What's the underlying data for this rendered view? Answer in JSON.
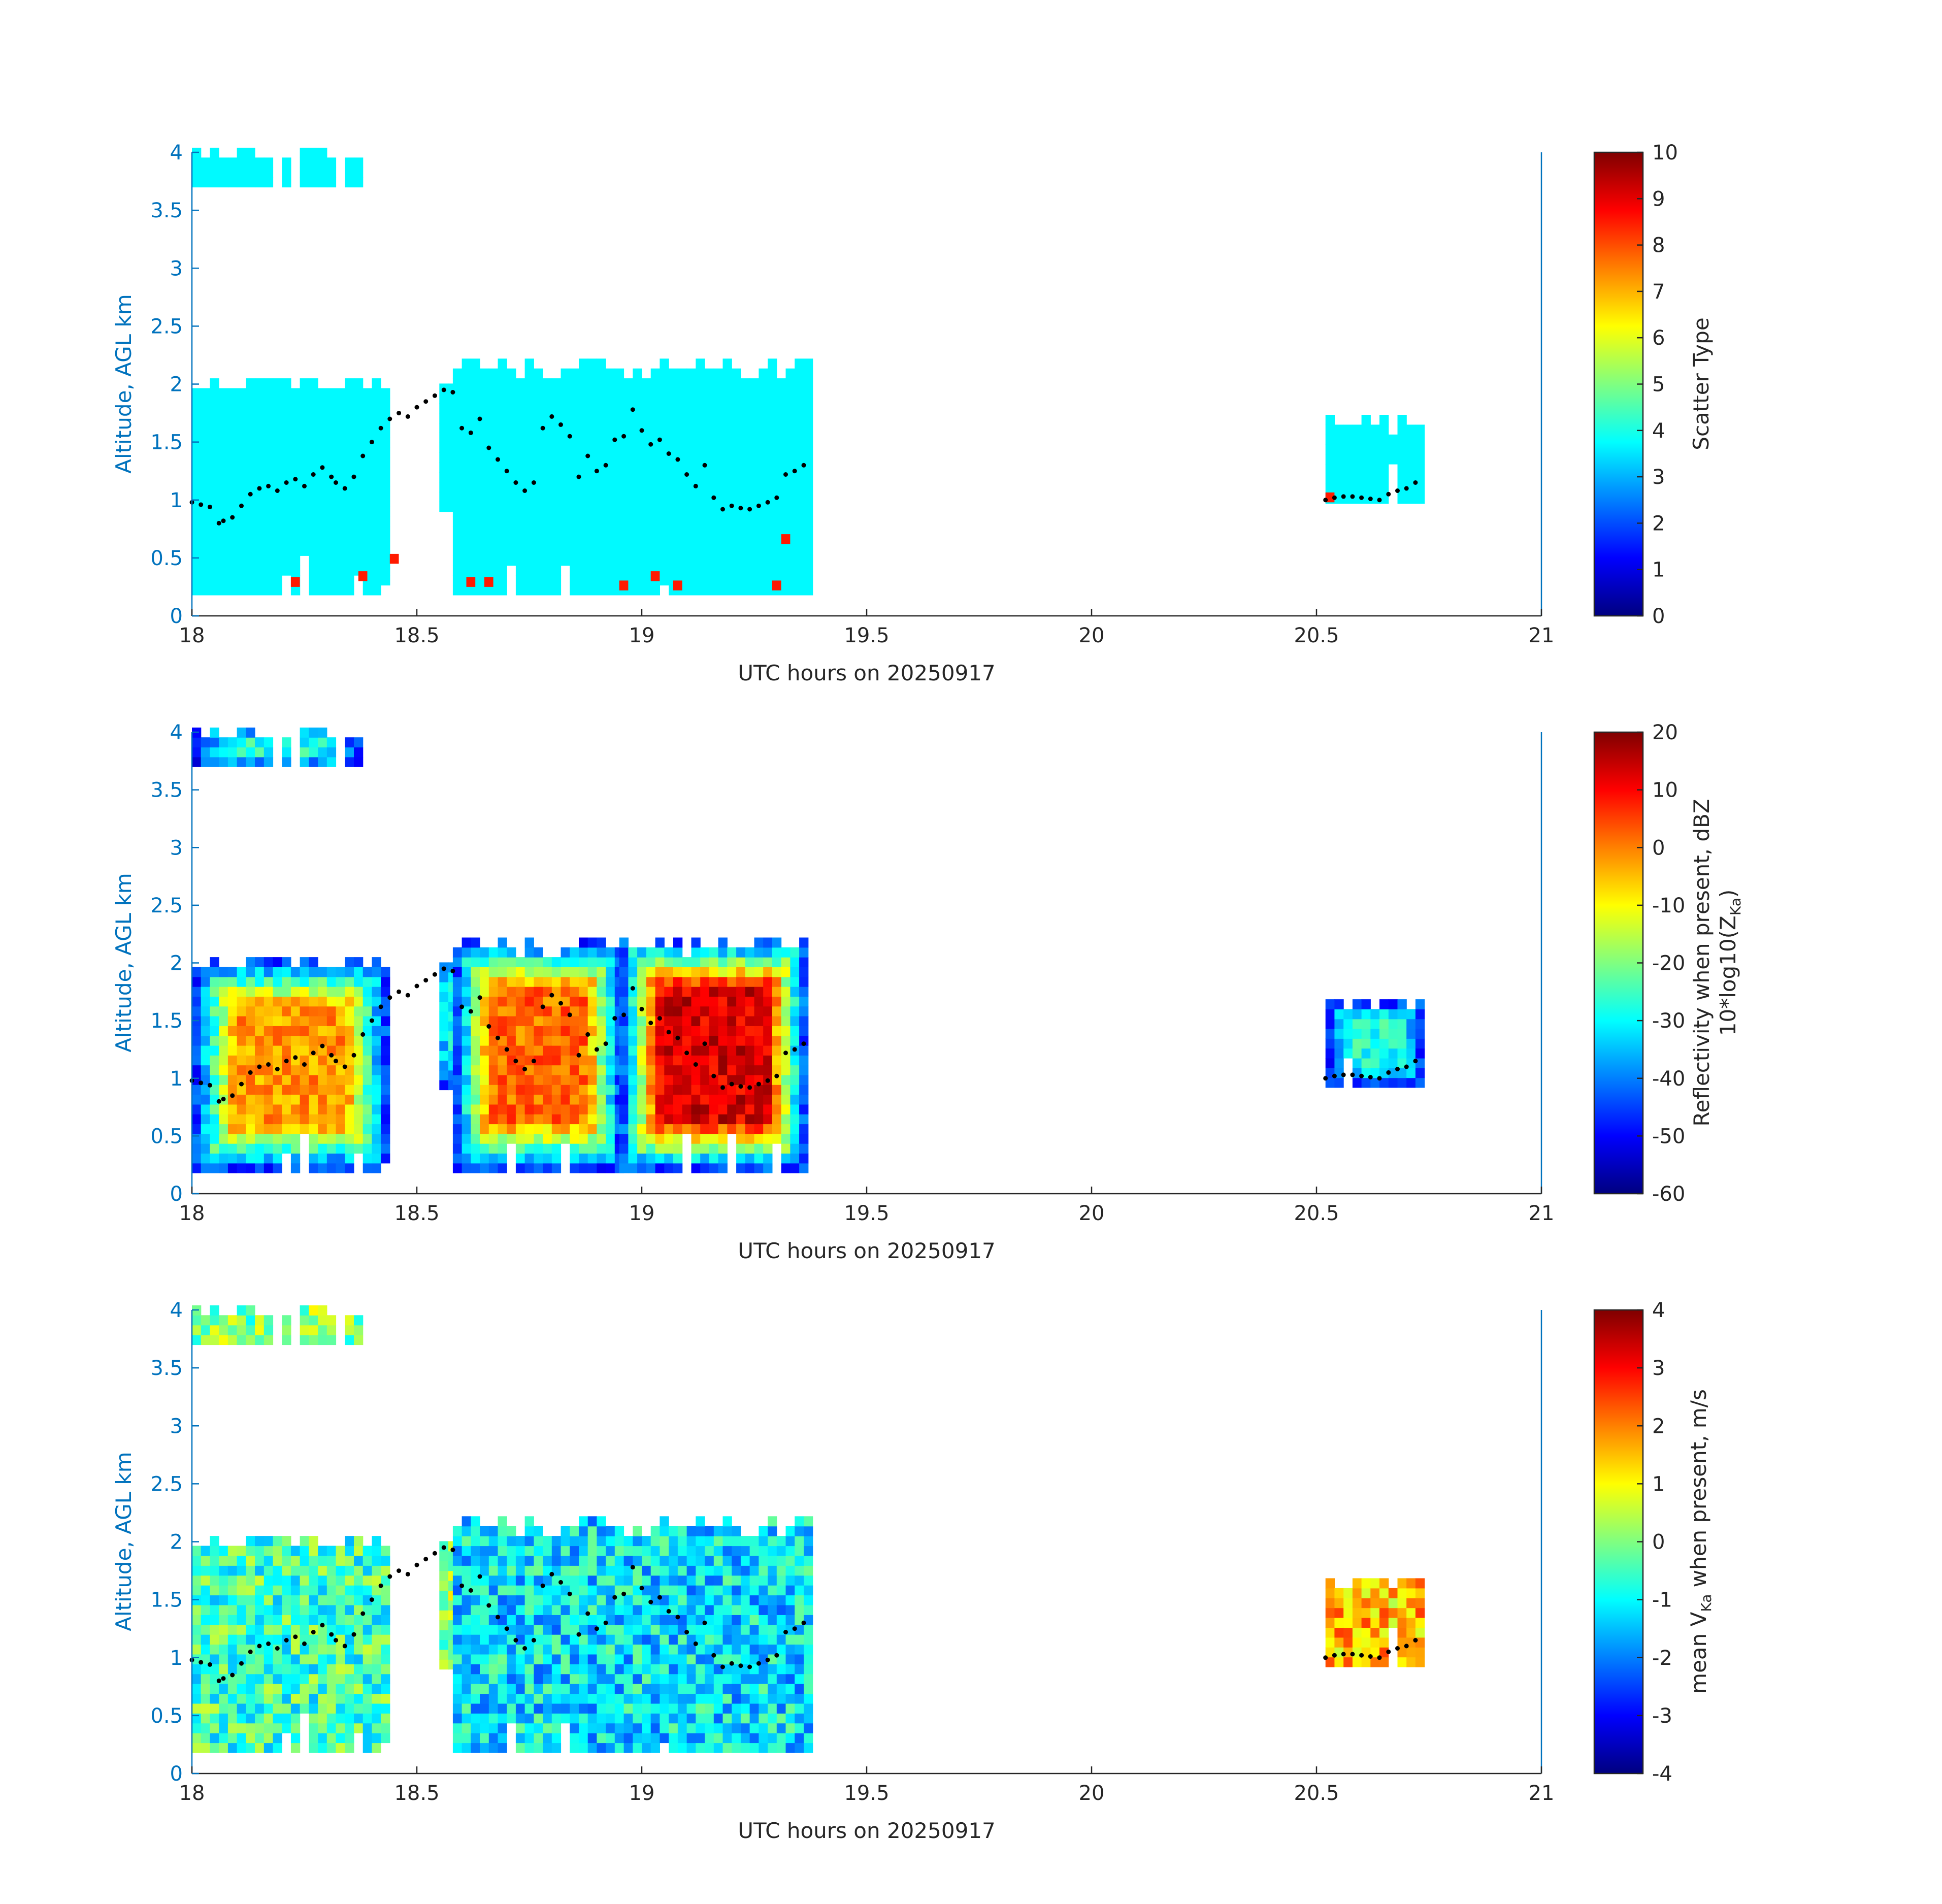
{
  "figure": {
    "panels": [
      {
        "id": "scatter_type",
        "xlabel": "UTC hours on 20250917",
        "ylabel": "Altitude, AGL km",
        "colorbar": {
          "label": "Scatter Type",
          "ticks": [
            "0",
            "1",
            "2",
            "3",
            "4",
            "5",
            "6",
            "7",
            "8",
            "9",
            "10"
          ]
        }
      },
      {
        "id": "reflectivity",
        "xlabel": "UTC hours on 20250917",
        "ylabel": "Altitude, AGL km",
        "colorbar": {
          "label": "Reflectivity when present, dBZ",
          "label2_pre": "10*log10(Z",
          "label2_sub": "Ka",
          "label2_post": ")",
          "ticks": [
            "-60",
            "-50",
            "-40",
            "-30",
            "-20",
            "-10",
            "0",
            "10",
            "20"
          ]
        }
      },
      {
        "id": "velocity",
        "xlabel": "UTC hours on 20250917",
        "ylabel": "Altitude, AGL km",
        "colorbar": {
          "label_pre": "mean V",
          "label_sub": "Ka",
          "label_post": " when present, m/s",
          "ticks": [
            "-4",
            "-3",
            "-2",
            "-1",
            "0",
            "1",
            "2",
            "3",
            "4"
          ]
        }
      }
    ],
    "x_tick_labels": [
      "18",
      "18.5",
      "19",
      "19.5",
      "20",
      "20.5",
      "21"
    ],
    "y_tick_labels": [
      "0",
      "0.5",
      "1",
      "1.5",
      "2",
      "2.5",
      "3",
      "3.5",
      "4"
    ],
    "axis_color": "#0072BD",
    "tick_color": "#262626",
    "colormap": "jet"
  },
  "chart_data": [
    {
      "type": "heatmap",
      "title": "",
      "xlabel": "UTC hours on 20250917",
      "ylabel": "Altitude, AGL km",
      "xlim": [
        18,
        21
      ],
      "ylim": [
        0,
        4
      ],
      "colorbar_label": "Scatter Type",
      "clim": [
        0,
        10
      ],
      "grid": false,
      "echo_regions": [
        {
          "x_range": [
            18.0,
            18.37
          ],
          "y_range": [
            3.7,
            4.0
          ],
          "value": 3.7
        },
        {
          "x_range": [
            18.0,
            18.44
          ],
          "y_range": [
            0.18,
            2.05
          ],
          "value": 3.7
        },
        {
          "x_range": [
            18.55,
            18.6
          ],
          "y_range": [
            0.9,
            2.05
          ],
          "value": 3.7
        },
        {
          "x_range": [
            18.58,
            19.38
          ],
          "y_range": [
            0.18,
            2.2
          ],
          "value": 3.7
        },
        {
          "x_range": [
            20.52,
            20.73
          ],
          "y_range": [
            0.97,
            1.72
          ],
          "value": 3.7
        }
      ],
      "secondary_echoes": [
        {
          "x": 18.22,
          "y": 0.25,
          "value": 8.5
        },
        {
          "x": 18.37,
          "y": 0.3,
          "value": 8.5
        },
        {
          "x": 18.44,
          "y": 0.45,
          "value": 8.5
        },
        {
          "x": 18.61,
          "y": 0.25,
          "value": 8.5
        },
        {
          "x": 18.65,
          "y": 0.25,
          "value": 8.5
        },
        {
          "x": 18.95,
          "y": 0.22,
          "value": 8.5
        },
        {
          "x": 19.02,
          "y": 0.3,
          "value": 8.5
        },
        {
          "x": 19.07,
          "y": 0.22,
          "value": 8.5
        },
        {
          "x": 19.29,
          "y": 0.22,
          "value": 8.5
        },
        {
          "x": 19.31,
          "y": 0.62,
          "value": 8.5
        },
        {
          "x": 20.52,
          "y": 0.98,
          "value": 8.5
        }
      ]
    },
    {
      "type": "heatmap",
      "title": "",
      "xlabel": "UTC hours on 20250917",
      "ylabel": "Altitude, AGL km",
      "xlim": [
        18,
        21
      ],
      "ylim": [
        0,
        4
      ],
      "colorbar_label": "Reflectivity when present, dBZ 10*log10(ZKa)",
      "clim": [
        -60,
        20
      ],
      "grid": false,
      "echo_regions": [
        {
          "x_range": [
            18.0,
            18.37
          ],
          "y_range": [
            3.7,
            4.0
          ],
          "core_dbz": -28,
          "edge_dbz": -50
        },
        {
          "x_range": [
            18.0,
            18.44
          ],
          "y_range": [
            0.18,
            2.05
          ],
          "core_dbz": -2,
          "edge_dbz": -50
        },
        {
          "x_range": [
            18.55,
            18.6
          ],
          "y_range": [
            0.9,
            2.05
          ],
          "core_dbz": -30,
          "edge_dbz": -50
        },
        {
          "x_range": [
            18.58,
            18.95
          ],
          "y_range": [
            0.18,
            2.2
          ],
          "core_dbz": 2,
          "edge_dbz": -50
        },
        {
          "x_range": [
            18.95,
            19.38
          ],
          "y_range": [
            0.18,
            2.2
          ],
          "core_dbz": 13,
          "edge_dbz": -50
        },
        {
          "x_range": [
            20.52,
            20.73
          ],
          "y_range": [
            0.92,
            1.72
          ],
          "core_dbz": -28,
          "edge_dbz": -50
        }
      ]
    },
    {
      "type": "heatmap",
      "title": "",
      "xlabel": "UTC hours on 20250917",
      "ylabel": "Altitude, AGL km",
      "xlim": [
        18,
        21
      ],
      "ylim": [
        0,
        4
      ],
      "colorbar_label": "mean VKa when present, m/s",
      "clim": [
        -4,
        4
      ],
      "grid": false,
      "echo_regions": [
        {
          "x_range": [
            18.0,
            18.37
          ],
          "y_range": [
            3.7,
            4.0
          ],
          "mean_velocity": 0.0
        },
        {
          "x_range": [
            18.0,
            18.44
          ],
          "y_range": [
            0.18,
            2.05
          ],
          "mean_velocity": -0.5
        },
        {
          "x_range": [
            18.55,
            18.6
          ],
          "y_range": [
            0.9,
            2.05
          ],
          "mean_velocity": 0.2
        },
        {
          "x_range": [
            18.58,
            19.38
          ],
          "y_range": [
            0.18,
            2.2
          ],
          "mean_velocity": -1.2
        },
        {
          "x_range": [
            20.52,
            20.73
          ],
          "y_range": [
            0.92,
            1.72
          ],
          "mean_velocity": 1.5
        }
      ]
    },
    {
      "type": "scatter",
      "title": "",
      "xlabel": "UTC hours on 20250917",
      "ylabel": "Altitude, AGL km",
      "xlim": [
        18,
        21
      ],
      "ylim": [
        0,
        4
      ],
      "shown_in_panels": [
        1,
        2,
        3
      ],
      "marker_color": "#000000",
      "x": [
        18.0,
        18.02,
        18.04,
        18.06,
        18.07,
        18.09,
        18.11,
        18.13,
        18.15,
        18.17,
        18.19,
        18.21,
        18.23,
        18.25,
        18.27,
        18.29,
        18.31,
        18.32,
        18.34,
        18.36,
        18.38,
        18.4,
        18.42,
        18.44,
        18.46,
        18.48,
        18.5,
        18.52,
        18.54,
        18.56,
        18.58,
        18.6,
        18.62,
        18.64,
        18.66,
        18.68,
        18.7,
        18.72,
        18.74,
        18.76,
        18.78,
        18.8,
        18.82,
        18.84,
        18.86,
        18.88,
        18.9,
        18.92,
        18.94,
        18.96,
        18.98,
        19.0,
        19.02,
        19.04,
        19.06,
        19.08,
        19.1,
        19.12,
        19.14,
        19.16,
        19.18,
        19.2,
        19.22,
        19.24,
        19.26,
        19.28,
        19.3,
        19.32,
        19.34,
        19.36,
        20.52,
        20.54,
        20.56,
        20.58,
        20.6,
        20.62,
        20.64,
        20.66,
        20.68,
        20.7,
        20.72
      ],
      "y": [
        0.98,
        0.96,
        0.94,
        0.8,
        0.82,
        0.85,
        0.95,
        1.05,
        1.1,
        1.12,
        1.08,
        1.15,
        1.18,
        1.12,
        1.22,
        1.28,
        1.2,
        1.15,
        1.1,
        1.2,
        1.38,
        1.5,
        1.62,
        1.7,
        1.75,
        1.72,
        1.8,
        1.85,
        1.9,
        1.95,
        1.93,
        1.62,
        1.58,
        1.7,
        1.45,
        1.35,
        1.25,
        1.15,
        1.08,
        1.15,
        1.62,
        1.72,
        1.65,
        1.55,
        1.2,
        1.38,
        1.25,
        1.3,
        1.52,
        1.55,
        1.78,
        1.6,
        1.48,
        1.52,
        1.4,
        1.35,
        1.22,
        1.12,
        1.3,
        1.02,
        0.92,
        0.95,
        0.93,
        0.92,
        0.95,
        0.98,
        1.02,
        1.22,
        1.25,
        1.3,
        1.0,
        1.02,
        1.03,
        1.03,
        1.02,
        1.01,
        1.0,
        1.05,
        1.08,
        1.1,
        1.15
      ]
    }
  ]
}
